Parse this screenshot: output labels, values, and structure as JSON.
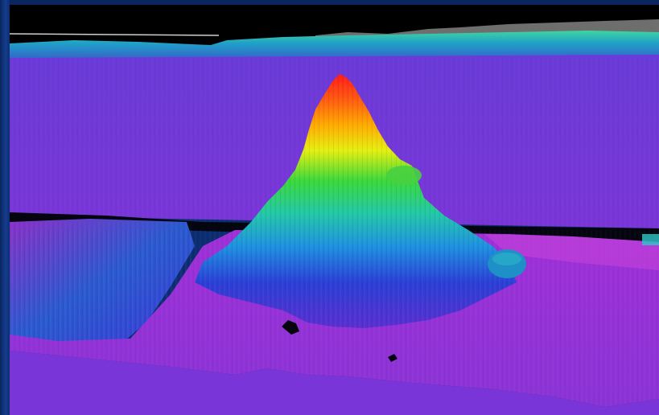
{
  "image": {
    "subject": "seamount-bathymetry-render",
    "colormap": [
      "#ff1a1a",
      "#ff9900",
      "#ffee00",
      "#33dd33",
      "#22c7b0",
      "#1e90e0",
      "#2a3fd6",
      "#6a2fd6",
      "#b030d8"
    ],
    "sky_color": "#000000",
    "background_frame_color": "#0d2d72"
  }
}
